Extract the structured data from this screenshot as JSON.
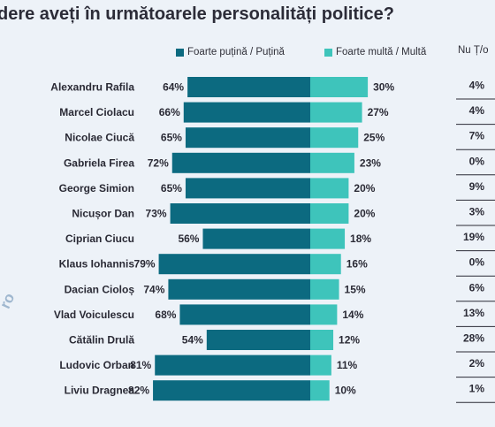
{
  "chart_data": {
    "type": "bar",
    "title": "dere aveți în următoarele personalități politice?",
    "categories": [
      "Alexandru Rafila",
      "Marcel Ciolacu",
      "Nicolae Ciucă",
      "Gabriela Firea",
      "George Simion",
      "Nicușor Dan",
      "Ciprian Ciucu",
      "Klaus Iohannis",
      "Dacian Cioloș",
      "Vlad Voiculescu",
      "Cătălin Drulă",
      "Ludovic Orban",
      "Liviu Dragnea"
    ],
    "series": [
      {
        "name": "Foarte puțină / Puțină",
        "color": "#0c6a80",
        "values": [
          64,
          66,
          65,
          72,
          65,
          73,
          56,
          79,
          74,
          68,
          54,
          81,
          82
        ]
      },
      {
        "name": "Foarte multă / Multă",
        "color": "#3ec4bb",
        "values": [
          30,
          27,
          25,
          23,
          20,
          20,
          18,
          16,
          15,
          14,
          12,
          11,
          10
        ]
      },
      {
        "name": "Nu Ț/o",
        "values": [
          4,
          4,
          7,
          0,
          9,
          3,
          19,
          0,
          6,
          13,
          28,
          2,
          1
        ]
      }
    ],
    "value_suffix": "%",
    "legend_position": "top",
    "grid": false
  },
  "watermark": "ro"
}
